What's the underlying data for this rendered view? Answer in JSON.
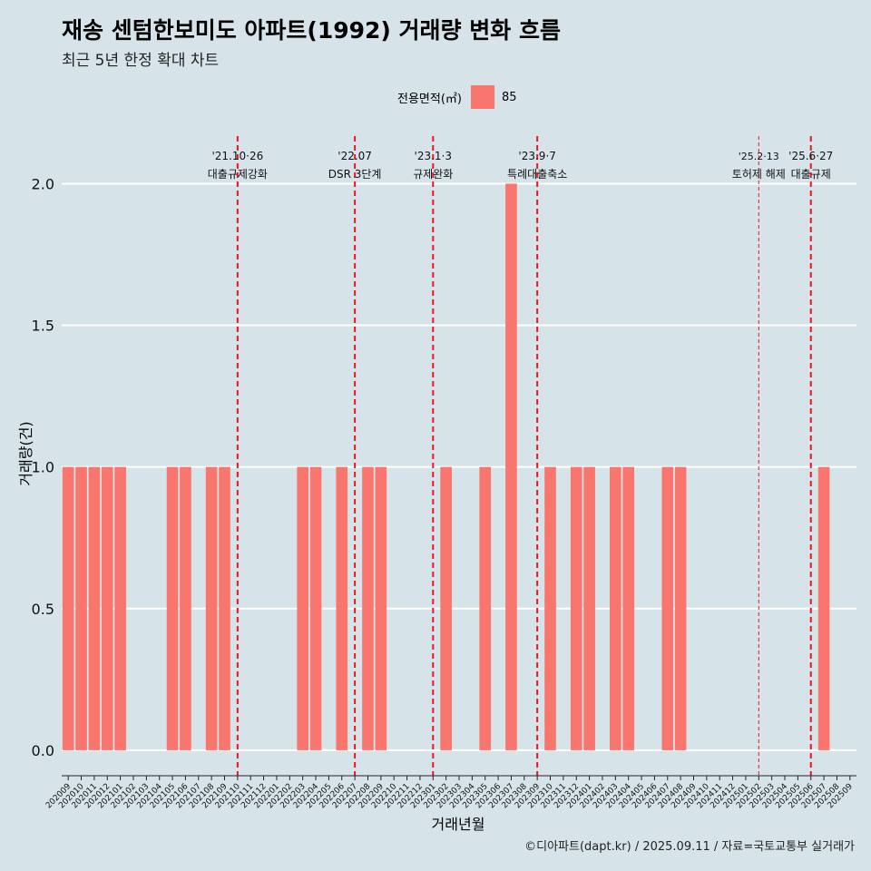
{
  "header": {
    "title": "재송 센텀한보미도 아파트(1992) 거래량 변화 흐름",
    "subtitle": "최근 5년 한정 확대 차트"
  },
  "legend": {
    "title": "전용면적(㎡)",
    "label": "85",
    "color": "#f8766d"
  },
  "caption": "©디아파트(dapt.kr) / 2025.09.11 / 자료=국토교통부 실거래가",
  "chart_data": {
    "type": "bar",
    "title": "재송 센텀한보미도 아파트(1992) 거래량 변화 흐름",
    "xlabel": "거래년월",
    "ylabel": "거래량(건)",
    "ylim": [
      -0.09,
      2.2
    ],
    "yticks": [
      0.0,
      0.5,
      1.0,
      1.5,
      2.0
    ],
    "ytick_labels": [
      "0.0",
      "0.5",
      "1.0",
      "1.5",
      "2.0"
    ],
    "grid": true,
    "categories": [
      "202009",
      "202010",
      "202011",
      "202012",
      "202101",
      "202102",
      "202103",
      "202104",
      "202105",
      "202106",
      "202107",
      "202108",
      "202109",
      "202110",
      "202111",
      "202112",
      "202201",
      "202202",
      "202203",
      "202204",
      "202205",
      "202206",
      "202207",
      "202208",
      "202209",
      "202210",
      "202211",
      "202212",
      "202301",
      "202302",
      "202303",
      "202304",
      "202305",
      "202306",
      "202307",
      "202308",
      "202309",
      "202310",
      "202311",
      "202312",
      "202401",
      "202402",
      "202403",
      "202404",
      "202405",
      "202406",
      "202407",
      "202408",
      "202409",
      "202410",
      "202411",
      "202412",
      "202501",
      "202502",
      "202503",
      "202504",
      "202505",
      "202506",
      "202507",
      "202508",
      "202509"
    ],
    "series": [
      {
        "name": "85",
        "color": "#f8766d",
        "values": [
          1,
          1,
          1,
          1,
          1,
          0,
          0,
          0,
          1,
          1,
          0,
          1,
          1,
          0,
          0,
          0,
          0,
          0,
          1,
          1,
          0,
          1,
          0,
          1,
          1,
          0,
          0,
          0,
          0,
          1,
          0,
          0,
          1,
          0,
          2,
          0,
          0,
          1,
          0,
          1,
          1,
          0,
          1,
          1,
          0,
          0,
          1,
          1,
          0,
          0,
          0,
          0,
          0,
          0,
          0,
          0,
          0,
          0,
          1,
          0,
          0
        ]
      }
    ],
    "annotations": [
      {
        "category": "202110",
        "date": "'21.10·26",
        "label": "대출규제강화",
        "style": "dashed"
      },
      {
        "category": "202207",
        "date": "'22.07",
        "label": "DSR 3단계",
        "style": "dashed"
      },
      {
        "category": "202301",
        "date": "'23.1·3",
        "label": "규제완화",
        "style": "dashed"
      },
      {
        "category": "202309",
        "date": "'23.9·7",
        "label": "특례대출축소",
        "style": "dashed"
      },
      {
        "category": "202502",
        "date": "'25.2·13",
        "label": "토허제 해제",
        "style": "thin-dashed"
      },
      {
        "category": "202506",
        "date": "'25.6·27",
        "label": "대출규제",
        "style": "dashed"
      }
    ]
  }
}
